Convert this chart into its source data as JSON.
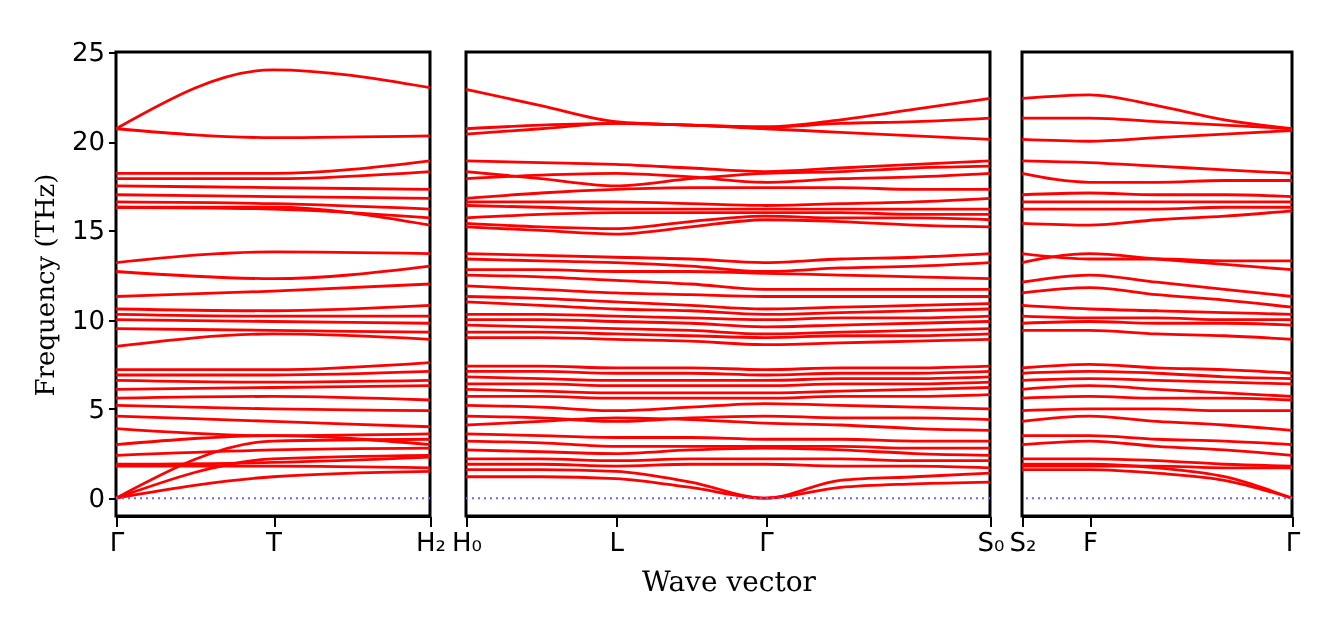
{
  "chart_data": [
    {
      "type": "line",
      "ylabel": "Frequency (THz)",
      "ylim": [
        -1,
        25
      ],
      "yticks": [
        0,
        5,
        10,
        15,
        20,
        25
      ],
      "categories": [
        "Γ",
        "T",
        "H₂"
      ],
      "grid": false,
      "legend": false,
      "ref_lines": [
        {
          "axis": "y",
          "value": 0,
          "color": "#6666ff",
          "line_style": "dotted"
        }
      ],
      "series": [
        {
          "color": "#ff0000",
          "values": [
            20.7,
            24.0,
            23.0
          ]
        },
        {
          "color": "#ff0000",
          "values": [
            20.7,
            20.2,
            20.3
          ]
        },
        {
          "color": "#ff0000",
          "values": [
            18.2,
            18.2,
            18.9
          ]
        },
        {
          "color": "#ff0000",
          "values": [
            17.9,
            17.9,
            18.3
          ]
        },
        {
          "color": "#ff0000",
          "values": [
            17.5,
            17.4,
            17.3
          ]
        },
        {
          "color": "#ff0000",
          "values": [
            17.0,
            16.9,
            16.8
          ]
        },
        {
          "color": "#ff0000",
          "values": [
            16.6,
            16.5,
            16.2
          ]
        },
        {
          "color": "#ff0000",
          "values": [
            16.3,
            16.2,
            15.7
          ]
        },
        {
          "color": "#ff0000",
          "values": [
            16.3,
            16.3,
            15.3
          ]
        },
        {
          "color": "#ff0000",
          "values": [
            13.2,
            13.8,
            13.7
          ]
        },
        {
          "color": "#ff0000",
          "values": [
            12.7,
            12.3,
            13.0
          ]
        },
        {
          "color": "#ff0000",
          "values": [
            11.3,
            11.6,
            12.0
          ]
        },
        {
          "color": "#ff0000",
          "values": [
            10.6,
            10.5,
            10.8
          ]
        },
        {
          "color": "#ff0000",
          "values": [
            10.3,
            10.2,
            10.2
          ]
        },
        {
          "color": "#ff0000",
          "values": [
            10.0,
            9.9,
            9.8
          ]
        },
        {
          "color": "#ff0000",
          "values": [
            9.5,
            9.4,
            9.3
          ]
        },
        {
          "color": "#ff0000",
          "values": [
            8.5,
            9.2,
            8.9
          ]
        },
        {
          "color": "#ff0000",
          "values": [
            7.2,
            7.2,
            7.6
          ]
        },
        {
          "color": "#ff0000",
          "values": [
            6.9,
            6.9,
            7.1
          ]
        },
        {
          "color": "#ff0000",
          "values": [
            6.6,
            6.5,
            6.6
          ]
        },
        {
          "color": "#ff0000",
          "values": [
            6.1,
            6.2,
            6.3
          ]
        },
        {
          "color": "#ff0000",
          "values": [
            5.6,
            5.7,
            5.5
          ]
        },
        {
          "color": "#ff0000",
          "values": [
            5.2,
            5.0,
            4.9
          ]
        },
        {
          "color": "#ff0000",
          "values": [
            4.6,
            4.3,
            4.0
          ]
        },
        {
          "color": "#ff0000",
          "values": [
            3.9,
            3.5,
            3.6
          ]
        },
        {
          "color": "#ff0000",
          "values": [
            3.0,
            3.5,
            3.0
          ]
        },
        {
          "color": "#ff0000",
          "values": [
            2.4,
            2.7,
            2.8
          ]
        },
        {
          "color": "#ff0000",
          "values": [
            1.9,
            2.0,
            2.3
          ]
        },
        {
          "color": "#ff0000",
          "values": [
            1.8,
            1.8,
            1.7
          ]
        },
        {
          "color": "#ff0000",
          "values": [
            0,
            1.2,
            1.5
          ]
        },
        {
          "color": "#ff0000",
          "values": [
            0,
            2.2,
            2.4
          ]
        },
        {
          "color": "#ff0000",
          "values": [
            0,
            3.2,
            3.3
          ]
        }
      ]
    },
    {
      "type": "line",
      "xlabel": "Wave vector",
      "ylim": [
        -1,
        25
      ],
      "tick_labels": "x",
      "categories": [
        "H₀",
        null,
        "L",
        null,
        "Γ",
        null,
        null,
        "S₀"
      ],
      "grid": false,
      "legend": false,
      "ref_lines": [
        {
          "axis": "y",
          "value": 0,
          "color": "#6666ff",
          "line_style": "dotted"
        }
      ],
      "series": [
        {
          "color": "#ff0000",
          "values": [
            22.9,
            22.0,
            21.1,
            20.9,
            20.8,
            21.2,
            21.8,
            22.4
          ]
        },
        {
          "color": "#ff0000",
          "values": [
            20.7,
            20.9,
            21.0,
            20.9,
            20.8,
            21.0,
            21.1,
            21.3
          ]
        },
        {
          "color": "#ff0000",
          "values": [
            20.4,
            20.7,
            21.0,
            20.9,
            20.7,
            20.5,
            20.3,
            20.1
          ]
        },
        {
          "color": "#ff0000",
          "values": [
            18.9,
            18.8,
            18.7,
            18.5,
            18.3,
            18.5,
            18.7,
            18.9
          ]
        },
        {
          "color": "#ff0000",
          "values": [
            18.3,
            17.9,
            17.5,
            17.9,
            18.2,
            18.3,
            18.5,
            18.6
          ]
        },
        {
          "color": "#ff0000",
          "values": [
            17.9,
            18.1,
            18.2,
            18.0,
            17.7,
            17.9,
            18.0,
            18.2
          ]
        },
        {
          "color": "#ff0000",
          "values": [
            16.8,
            17.1,
            17.3,
            17.4,
            17.4,
            17.4,
            17.3,
            17.3
          ]
        },
        {
          "color": "#ff0000",
          "values": [
            16.6,
            16.6,
            16.6,
            16.5,
            16.4,
            16.5,
            16.6,
            16.8
          ]
        },
        {
          "color": "#ff0000",
          "values": [
            16.4,
            16.3,
            16.2,
            16.2,
            16.2,
            16.2,
            16.2,
            16.2
          ]
        },
        {
          "color": "#ff0000",
          "values": [
            15.7,
            15.9,
            16.0,
            16.0,
            16.0,
            16.0,
            15.9,
            15.9
          ]
        },
        {
          "color": "#ff0000",
          "values": [
            15.4,
            15.2,
            15.1,
            15.5,
            15.8,
            15.7,
            15.7,
            15.6
          ]
        },
        {
          "color": "#ff0000",
          "values": [
            15.2,
            15.0,
            14.8,
            15.2,
            15.6,
            15.5,
            15.3,
            15.2
          ]
        },
        {
          "color": "#ff0000",
          "values": [
            13.7,
            13.6,
            13.5,
            13.4,
            13.2,
            13.4,
            13.5,
            13.7
          ]
        },
        {
          "color": "#ff0000",
          "values": [
            13.4,
            13.3,
            13.2,
            13.0,
            12.7,
            12.9,
            13.0,
            13.2
          ]
        },
        {
          "color": "#ff0000",
          "values": [
            12.8,
            12.8,
            12.7,
            12.7,
            12.6,
            12.5,
            12.4,
            12.3
          ]
        },
        {
          "color": "#ff0000",
          "values": [
            12.5,
            12.4,
            12.2,
            12.0,
            11.7,
            11.7,
            11.7,
            11.7
          ]
        },
        {
          "color": "#ff0000",
          "values": [
            11.9,
            11.7,
            11.5,
            11.4,
            11.3,
            11.3,
            11.3,
            11.3
          ]
        },
        {
          "color": "#ff0000",
          "values": [
            11.3,
            11.2,
            11.0,
            10.8,
            10.6,
            10.7,
            10.8,
            10.9
          ]
        },
        {
          "color": "#ff0000",
          "values": [
            11.0,
            10.8,
            10.6,
            10.5,
            10.3,
            10.4,
            10.5,
            10.6
          ]
        },
        {
          "color": "#ff0000",
          "values": [
            10.3,
            10.3,
            10.2,
            10.1,
            10.0,
            10.1,
            10.1,
            10.2
          ]
        },
        {
          "color": "#ff0000",
          "values": [
            10.0,
            10.0,
            9.9,
            9.8,
            9.6,
            9.7,
            9.8,
            9.9
          ]
        },
        {
          "color": "#ff0000",
          "values": [
            9.7,
            9.6,
            9.5,
            9.4,
            9.2,
            9.3,
            9.4,
            9.5
          ]
        },
        {
          "color": "#ff0000",
          "values": [
            9.3,
            9.3,
            9.2,
            9.1,
            9.0,
            9.1,
            9.1,
            9.2
          ]
        },
        {
          "color": "#ff0000",
          "values": [
            9.0,
            9.0,
            8.9,
            8.8,
            8.6,
            8.7,
            8.8,
            8.9
          ]
        },
        {
          "color": "#ff0000",
          "values": [
            7.4,
            7.4,
            7.3,
            7.3,
            7.2,
            7.3,
            7.3,
            7.4
          ]
        },
        {
          "color": "#ff0000",
          "values": [
            7.1,
            7.1,
            7.0,
            7.0,
            6.9,
            7.0,
            7.0,
            7.1
          ]
        },
        {
          "color": "#ff0000",
          "values": [
            6.8,
            6.7,
            6.6,
            6.6,
            6.6,
            6.7,
            6.7,
            6.8
          ]
        },
        {
          "color": "#ff0000",
          "values": [
            6.4,
            6.4,
            6.3,
            6.3,
            6.3,
            6.4,
            6.4,
            6.5
          ]
        },
        {
          "color": "#ff0000",
          "values": [
            6.1,
            6.0,
            5.9,
            5.9,
            5.9,
            6.0,
            6.1,
            6.2
          ]
        },
        {
          "color": "#ff0000",
          "values": [
            5.7,
            5.7,
            5.6,
            5.6,
            5.6,
            5.7,
            5.7,
            5.8
          ]
        },
        {
          "color": "#ff0000",
          "values": [
            5.2,
            5.1,
            4.9,
            5.1,
            5.3,
            5.2,
            5.1,
            5.0
          ]
        },
        {
          "color": "#ff0000",
          "values": [
            4.6,
            4.5,
            4.3,
            4.5,
            4.6,
            4.5,
            4.5,
            4.4
          ]
        },
        {
          "color": "#ff0000",
          "values": [
            4.1,
            4.3,
            4.5,
            4.4,
            4.2,
            4.1,
            3.9,
            3.8
          ]
        },
        {
          "color": "#ff0000",
          "values": [
            3.6,
            3.5,
            3.4,
            3.4,
            3.3,
            3.3,
            3.2,
            3.2
          ]
        },
        {
          "color": "#ff0000",
          "values": [
            3.2,
            3.1,
            2.9,
            2.9,
            2.9,
            2.9,
            2.8,
            2.8
          ]
        },
        {
          "color": "#ff0000",
          "values": [
            2.7,
            2.6,
            2.5,
            2.7,
            2.8,
            2.7,
            2.5,
            2.4
          ]
        },
        {
          "color": "#ff0000",
          "values": [
            2.2,
            2.2,
            2.1,
            2.2,
            2.2,
            2.2,
            2.1,
            2.1
          ]
        },
        {
          "color": "#ff0000",
          "values": [
            1.9,
            1.9,
            1.8,
            1.9,
            1.9,
            1.8,
            1.8,
            1.7
          ]
        },
        {
          "color": "#ff0000",
          "values": [
            1.2,
            1.2,
            1.1,
            0.6,
            0,
            0.6,
            0.8,
            0.9
          ]
        },
        {
          "color": "#ff0000",
          "values": [
            1.6,
            1.6,
            1.5,
            0.9,
            0,
            1.0,
            1.2,
            1.4
          ]
        }
      ]
    },
    {
      "type": "line",
      "ylim": [
        -1,
        25
      ],
      "tick_labels": "x",
      "categories": [
        "S₂",
        "F",
        null,
        null,
        "Γ"
      ],
      "grid": false,
      "legend": false,
      "ref_lines": [
        {
          "axis": "y",
          "value": 0,
          "color": "#6666ff",
          "line_style": "dotted"
        }
      ],
      "series": [
        {
          "color": "#ff0000",
          "values": [
            22.4,
            22.6,
            22.0,
            21.2,
            20.7
          ]
        },
        {
          "color": "#ff0000",
          "values": [
            21.3,
            21.3,
            21.1,
            20.9,
            20.7
          ]
        },
        {
          "color": "#ff0000",
          "values": [
            20.1,
            20.0,
            20.2,
            20.4,
            20.6
          ]
        },
        {
          "color": "#ff0000",
          "values": [
            18.9,
            18.8,
            18.6,
            18.4,
            18.2
          ]
        },
        {
          "color": "#ff0000",
          "values": [
            18.2,
            17.7,
            17.7,
            17.8,
            17.8
          ]
        },
        {
          "color": "#ff0000",
          "values": [
            17.0,
            17.1,
            17.0,
            17.0,
            16.9
          ]
        },
        {
          "color": "#ff0000",
          "values": [
            16.6,
            16.6,
            16.6,
            16.6,
            16.6
          ]
        },
        {
          "color": "#ff0000",
          "values": [
            16.2,
            16.2,
            16.2,
            16.3,
            16.3
          ]
        },
        {
          "color": "#ff0000",
          "values": [
            15.4,
            15.3,
            15.6,
            15.8,
            16.1
          ]
        },
        {
          "color": "#ff0000",
          "values": [
            13.7,
            13.4,
            13.4,
            13.3,
            13.3
          ]
        },
        {
          "color": "#ff0000",
          "values": [
            13.2,
            13.7,
            13.4,
            13.1,
            12.8
          ]
        },
        {
          "color": "#ff0000",
          "values": [
            12.1,
            12.5,
            12.1,
            11.7,
            11.3
          ]
        },
        {
          "color": "#ff0000",
          "values": [
            11.5,
            11.8,
            11.4,
            11.1,
            10.7
          ]
        },
        {
          "color": "#ff0000",
          "values": [
            10.8,
            10.6,
            10.5,
            10.4,
            10.3
          ]
        },
        {
          "color": "#ff0000",
          "values": [
            10.2,
            10.1,
            10.1,
            10.0,
            10.0
          ]
        },
        {
          "color": "#ff0000",
          "values": [
            9.8,
            9.9,
            9.8,
            9.8,
            9.7
          ]
        },
        {
          "color": "#ff0000",
          "values": [
            9.4,
            9.4,
            9.2,
            9.1,
            8.9
          ]
        },
        {
          "color": "#ff0000",
          "values": [
            7.3,
            7.5,
            7.3,
            7.2,
            7.0
          ]
        },
        {
          "color": "#ff0000",
          "values": [
            7.0,
            7.1,
            7.0,
            6.8,
            6.7
          ]
        },
        {
          "color": "#ff0000",
          "values": [
            6.6,
            6.7,
            6.6,
            6.5,
            6.4
          ]
        },
        {
          "color": "#ff0000",
          "values": [
            6.1,
            6.3,
            6.1,
            5.9,
            5.7
          ]
        },
        {
          "color": "#ff0000",
          "values": [
            5.6,
            5.7,
            5.6,
            5.6,
            5.5
          ]
        },
        {
          "color": "#ff0000",
          "values": [
            4.9,
            5.0,
            5.0,
            4.9,
            4.9
          ]
        },
        {
          "color": "#ff0000",
          "values": [
            4.3,
            4.6,
            4.3,
            4.1,
            3.8
          ]
        },
        {
          "color": "#ff0000",
          "values": [
            3.5,
            3.5,
            3.3,
            3.2,
            3.0
          ]
        },
        {
          "color": "#ff0000",
          "values": [
            3.0,
            3.2,
            2.9,
            2.7,
            2.4
          ]
        },
        {
          "color": "#ff0000",
          "values": [
            2.2,
            2.2,
            2.1,
            1.9,
            1.8
          ]
        },
        {
          "color": "#ff0000",
          "values": [
            1.8,
            1.8,
            1.8,
            1.7,
            1.7
          ]
        },
        {
          "color": "#ff0000",
          "values": [
            1.6,
            1.6,
            1.4,
            1.0,
            0
          ]
        },
        {
          "color": "#ff0000",
          "values": [
            1.9,
            1.9,
            1.7,
            1.2,
            0
          ]
        }
      ]
    }
  ]
}
